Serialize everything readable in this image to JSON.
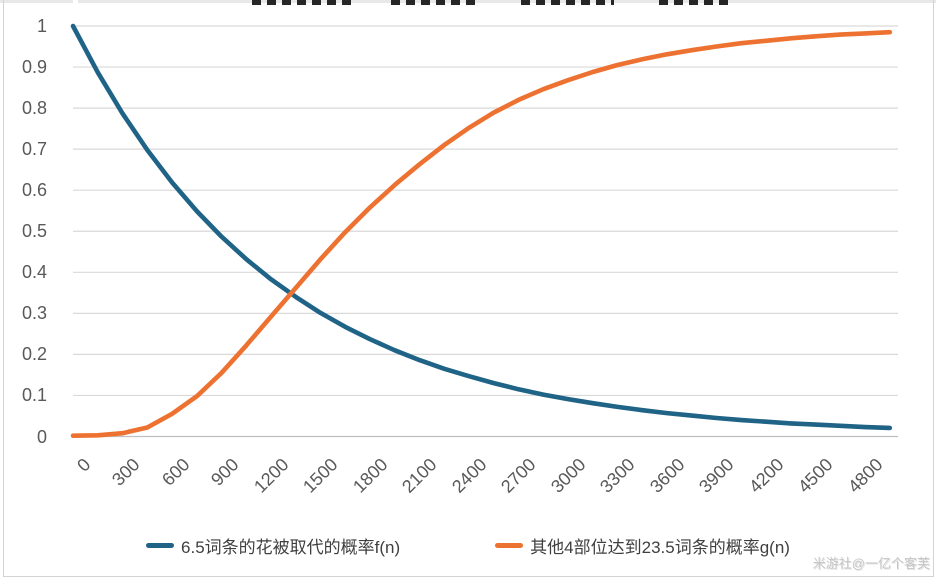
{
  "watermark": "米游社@一亿个客芙",
  "colors": {
    "series_f": "#1F6386",
    "series_g": "#ED7231",
    "grid": "#D9D9D9",
    "axis": "#BFBFBF",
    "tick_text": "#595959",
    "legend_text": "#3F3F3F",
    "watermark_text": "#C6C6C6",
    "frame": "#D3D3D3"
  },
  "chart_data": {
    "type": "line",
    "title": "",
    "x": [
      0,
      150,
      300,
      450,
      600,
      750,
      900,
      1050,
      1200,
      1350,
      1500,
      1650,
      1800,
      1950,
      2100,
      2250,
      2400,
      2550,
      2700,
      2850,
      3000,
      3150,
      3300,
      3450,
      3600,
      3750,
      3900,
      4050,
      4200,
      4350,
      4500,
      4650,
      4800,
      4950
    ],
    "series": [
      {
        "name": "6.5词条的花被取代的概率f(n)",
        "color": "#1F6386",
        "values": [
          1.0,
          0.887,
          0.787,
          0.698,
          0.619,
          0.549,
          0.487,
          0.432,
          0.383,
          0.34,
          0.301,
          0.267,
          0.237,
          0.21,
          0.186,
          0.165,
          0.147,
          0.13,
          0.115,
          0.102,
          0.091,
          0.081,
          0.072,
          0.064,
          0.057,
          0.051,
          0.045,
          0.04,
          0.036,
          0.032,
          0.029,
          0.026,
          0.023,
          0.021
        ]
      },
      {
        "name": "其他4部位达到23.5词条的概率g(n)",
        "color": "#ED7231",
        "values": [
          0.002,
          0.003,
          0.008,
          0.022,
          0.055,
          0.098,
          0.155,
          0.222,
          0.292,
          0.362,
          0.432,
          0.498,
          0.558,
          0.613,
          0.663,
          0.71,
          0.752,
          0.789,
          0.82,
          0.846,
          0.868,
          0.888,
          0.905,
          0.919,
          0.931,
          0.941,
          0.95,
          0.958,
          0.964,
          0.97,
          0.975,
          0.979,
          0.982,
          0.985
        ]
      }
    ],
    "xlim": [
      0,
      5000
    ],
    "ylim": [
      0,
      1
    ],
    "x_ticks": [
      0,
      300,
      600,
      900,
      1200,
      1500,
      1800,
      2100,
      2400,
      2700,
      3000,
      3300,
      3600,
      3900,
      4200,
      4500,
      4800
    ],
    "x_tick_labels": [
      "0",
      "300",
      "600",
      "900",
      "1200",
      "1500",
      "1800",
      "2100",
      "2400",
      "2700",
      "3000",
      "3300",
      "3600",
      "3900",
      "4200",
      "4500",
      "4800"
    ],
    "y_ticks": [
      0,
      0.1,
      0.2,
      0.3,
      0.4,
      0.5,
      0.6,
      0.7,
      0.8,
      0.9,
      1
    ],
    "y_tick_labels": [
      "0",
      "0.1",
      "0.2",
      "0.3",
      "0.4",
      "0.5",
      "0.6",
      "0.7",
      "0.8",
      "0.9",
      "1"
    ],
    "grid": "horizontal",
    "legend_position": "bottom",
    "xlabel": "",
    "ylabel": ""
  }
}
